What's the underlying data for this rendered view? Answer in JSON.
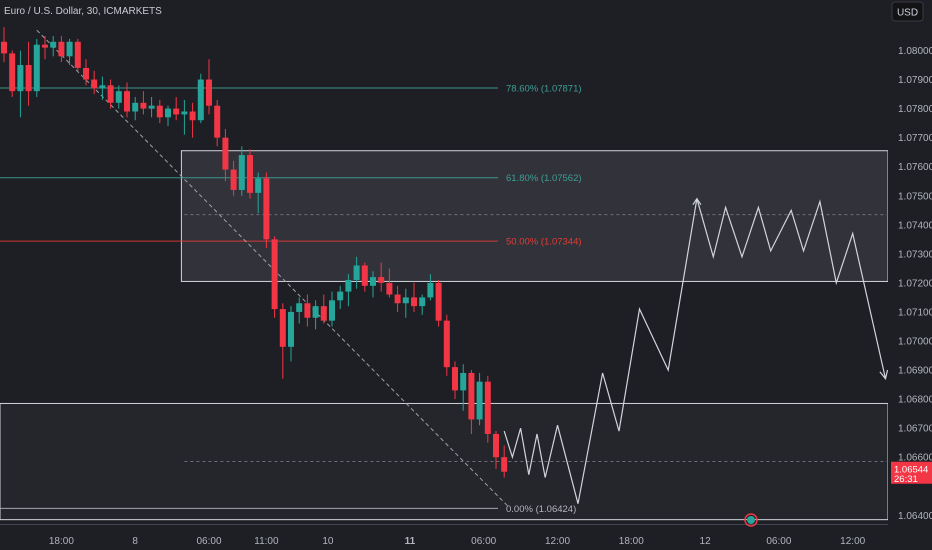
{
  "header": {
    "title": "Euro / U.S. Dollar, 30, ICMARKETS",
    "currency_button": "USD"
  },
  "price_tag": {
    "price": "1.06544",
    "countdown": "26:31"
  },
  "colors": {
    "background": "#1e1f24",
    "up": "#26a69a",
    "down": "#f23645",
    "fib_teal": "#3d9e95",
    "fib_red": "#e53935",
    "zone_fill": "#3a3b41",
    "line": "#d1d4dc"
  },
  "chart_data": {
    "type": "candlestick",
    "title": "Euro / U.S. Dollar, 30, ICMARKETS",
    "y_axis": {
      "range": [
        1.0637,
        1.0817
      ],
      "ticks": [
        "1.08000",
        "1.07900",
        "1.07800",
        "1.07700",
        "1.07600",
        "1.07500",
        "1.07400",
        "1.07300",
        "1.07200",
        "1.07100",
        "1.07000",
        "1.06900",
        "1.06800",
        "1.06700",
        "1.06600",
        "1.06400"
      ]
    },
    "x_axis": {
      "ticks": [
        {
          "label": "18:00",
          "i": 7
        },
        {
          "label": "8",
          "i": 16
        },
        {
          "label": "06:00",
          "i": 25
        },
        {
          "label": "11:00",
          "i": 32
        },
        {
          "label": "10",
          "i": 39.5
        },
        {
          "label": "11",
          "i": 49.5
        },
        {
          "label": "06:00",
          "i": 58.5
        },
        {
          "label": "12:00",
          "i": 67.5
        },
        {
          "label": "18:00",
          "i": 76.5
        },
        {
          "label": "12",
          "i": 85.5
        },
        {
          "label": "06:00",
          "i": 94.5
        },
        {
          "label": "12:00",
          "i": 103.5
        }
      ]
    },
    "fib_levels": [
      {
        "label": "78.60% (1.07871)",
        "price": 1.07871,
        "color": "#3d9e95"
      },
      {
        "label": "61.80% (1.07562)",
        "price": 1.07562,
        "color": "#3d9e95"
      },
      {
        "label": "50.00% (1.07344)",
        "price": 1.07344,
        "color": "#e53935"
      },
      {
        "label": "0.00% (1.06424)",
        "price": 1.06424,
        "color": "#b2b5be"
      }
    ],
    "zones": [
      {
        "top": 1.07655,
        "bottom": 1.07205,
        "start_i": 22
      },
      {
        "top": 1.06785,
        "bottom": 1.06385,
        "start_i": 0
      }
    ],
    "dashed_levels": [
      1.07435,
      1.06585
    ],
    "candles": [
      [
        1.0803,
        1.0808,
        1.0796,
        1.0799
      ],
      [
        1.0799,
        1.08,
        1.0784,
        1.0786
      ],
      [
        1.0786,
        1.08,
        1.0777,
        1.0795
      ],
      [
        1.0795,
        1.0803,
        1.0781,
        1.0786
      ],
      [
        1.0786,
        1.0804,
        1.0784,
        1.0802
      ],
      [
        1.0802,
        1.0805,
        1.0797,
        1.0801
      ],
      [
        1.0801,
        1.0805,
        1.0798,
        1.0803
      ],
      [
        1.0803,
        1.0805,
        1.0796,
        1.0798
      ],
      [
        1.0798,
        1.0804,
        1.0795,
        1.0803
      ],
      [
        1.0803,
        1.0804,
        1.0793,
        1.0794
      ],
      [
        1.0794,
        1.0797,
        1.0788,
        1.079
      ],
      [
        1.079,
        1.0793,
        1.0785,
        1.0787
      ],
      [
        1.0787,
        1.0791,
        1.0783,
        1.0788
      ],
      [
        1.0788,
        1.079,
        1.078,
        1.0782
      ],
      [
        1.0782,
        1.0788,
        1.078,
        1.0786
      ],
      [
        1.0786,
        1.0789,
        1.0777,
        1.0779
      ],
      [
        1.0779,
        1.0784,
        1.0776,
        1.0782
      ],
      [
        1.0782,
        1.0786,
        1.0778,
        1.078
      ],
      [
        1.078,
        1.0784,
        1.0777,
        1.0781
      ],
      [
        1.0781,
        1.0783,
        1.0775,
        1.0777
      ],
      [
        1.0777,
        1.0781,
        1.0774,
        1.078
      ],
      [
        1.078,
        1.0784,
        1.0776,
        1.0778
      ],
      [
        1.0778,
        1.0783,
        1.0771,
        1.0779
      ],
      [
        1.0779,
        1.0782,
        1.077,
        1.0776
      ],
      [
        1.0776,
        1.0792,
        1.0775,
        1.079
      ],
      [
        1.079,
        1.0797,
        1.0778,
        1.0781
      ],
      [
        1.0781,
        1.0783,
        1.0767,
        1.077
      ],
      [
        1.077,
        1.0773,
        1.0755,
        1.0759
      ],
      [
        1.0759,
        1.0762,
        1.075,
        1.0752
      ],
      [
        1.0752,
        1.0767,
        1.075,
        1.0764
      ],
      [
        1.0764,
        1.0766,
        1.0749,
        1.0751
      ],
      [
        1.0751,
        1.0758,
        1.0744,
        1.0756
      ],
      [
        1.0756,
        1.0758,
        1.0732,
        1.0735
      ],
      [
        1.0735,
        1.0736,
        1.0708,
        1.0711
      ],
      [
        1.0711,
        1.0713,
        1.0687,
        1.0698
      ],
      [
        1.0698,
        1.0712,
        1.0693,
        1.071
      ],
      [
        1.071,
        1.0715,
        1.0706,
        1.0713
      ],
      [
        1.0713,
        1.0716,
        1.0705,
        1.0708
      ],
      [
        1.0708,
        1.0714,
        1.0704,
        1.0712
      ],
      [
        1.0712,
        1.0716,
        1.0706,
        1.0707
      ],
      [
        1.0707,
        1.0717,
        1.0705,
        1.0714
      ],
      [
        1.0714,
        1.0719,
        1.0711,
        1.0717
      ],
      [
        1.0717,
        1.0723,
        1.0712,
        1.0721
      ],
      [
        1.0721,
        1.0729,
        1.0718,
        1.0726
      ],
      [
        1.0726,
        1.0727,
        1.0717,
        1.0719
      ],
      [
        1.0719,
        1.0724,
        1.0715,
        1.0722
      ],
      [
        1.0722,
        1.0727,
        1.0717,
        1.072
      ],
      [
        1.072,
        1.0725,
        1.0715,
        1.0716
      ],
      [
        1.0716,
        1.0719,
        1.071,
        1.0713
      ],
      [
        1.0713,
        1.0718,
        1.0708,
        1.0715
      ],
      [
        1.0715,
        1.072,
        1.071,
        1.0712
      ],
      [
        1.0712,
        1.0716,
        1.0709,
        1.0715
      ],
      [
        1.0715,
        1.0723,
        1.0714,
        1.072
      ],
      [
        1.072,
        1.0721,
        1.0705,
        1.0707
      ],
      [
        1.0707,
        1.0709,
        1.0688,
        1.0691
      ],
      [
        1.0691,
        1.0693,
        1.068,
        1.0683
      ],
      [
        1.0683,
        1.0692,
        1.0676,
        1.0689
      ],
      [
        1.0689,
        1.069,
        1.0668,
        1.0673
      ],
      [
        1.0673,
        1.0689,
        1.0671,
        1.0686
      ],
      [
        1.0686,
        1.0688,
        1.0665,
        1.0668
      ],
      [
        1.0668,
        1.0669,
        1.0656,
        1.066
      ],
      [
        1.066,
        1.0664,
        1.0653,
        1.0655
      ]
    ],
    "projection_path": [
      [
        61,
        1.0669
      ],
      [
        62,
        1.066
      ],
      [
        63,
        1.067
      ],
      [
        64,
        1.0654
      ],
      [
        65,
        1.0668
      ],
      [
        66,
        1.0653
      ],
      [
        67.5,
        1.0671
      ],
      [
        70,
        1.0644
      ],
      [
        73,
        1.0689
      ],
      [
        75,
        1.0669
      ],
      [
        77.5,
        1.0711
      ],
      [
        81,
        1.069
      ],
      [
        84.5,
        1.0749
      ],
      [
        86.5,
        1.0729
      ],
      [
        88,
        1.0746
      ],
      [
        90,
        1.0729
      ],
      [
        92,
        1.0746
      ],
      [
        93.5,
        1.0731
      ],
      [
        96,
        1.0745
      ],
      [
        97.5,
        1.0731
      ],
      [
        99.5,
        1.0748
      ],
      [
        101.5,
        1.072
      ],
      [
        103.5,
        1.0737
      ],
      [
        107.5,
        1.0687
      ]
    ],
    "fib_diagonal": [
      [
        4,
        1.0807
      ],
      [
        61.5,
        1.0643
      ]
    ]
  }
}
